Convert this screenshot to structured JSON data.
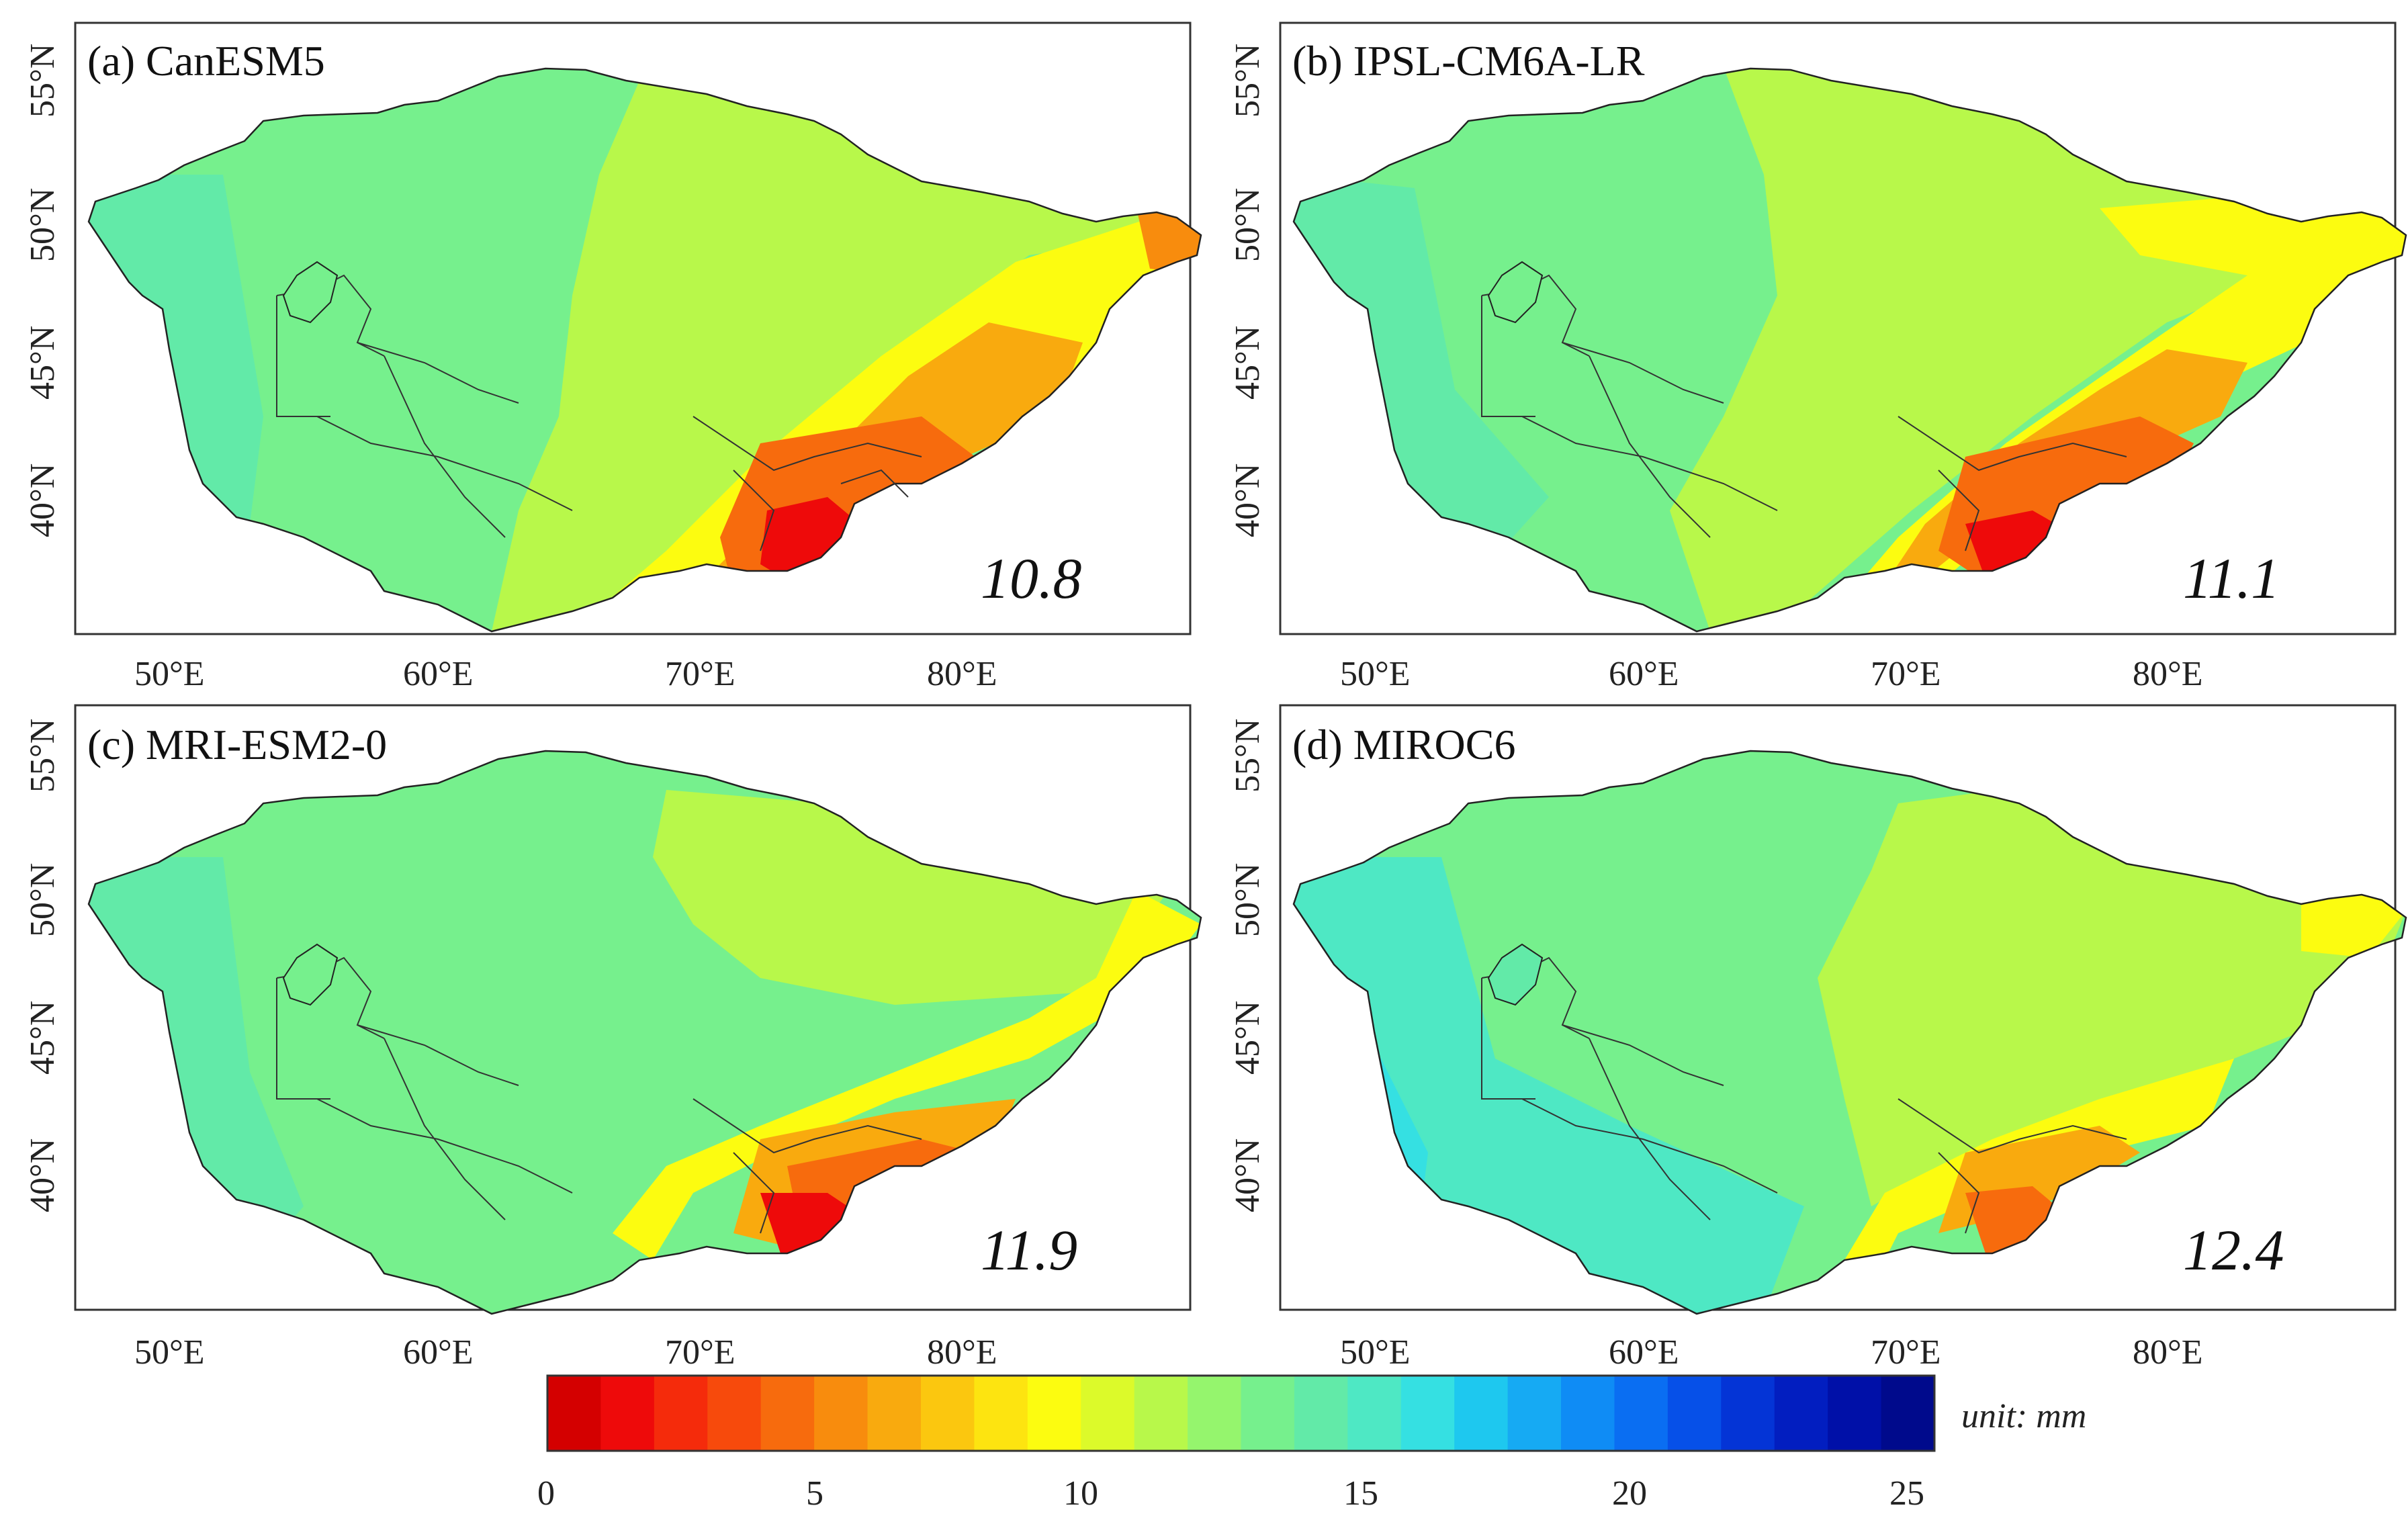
{
  "figure": {
    "lon_ticks": [
      "50°E",
      "60°E",
      "70°E",
      "80°E"
    ],
    "lat_ticks": [
      "40°N",
      "45°N",
      "50°N",
      "55°N"
    ],
    "panels": [
      {
        "label": "(a) CanESM5",
        "value": "10.8"
      },
      {
        "label": "(b) IPSL-CM6A-LR",
        "value": "11.1"
      },
      {
        "label": "(c) MRI-ESM2-0",
        "value": "11.9"
      },
      {
        "label": "(d) MIROC6",
        "value": "12.4"
      }
    ],
    "colorbar": {
      "min": 0,
      "max": 25,
      "ticks": [
        "0",
        "5",
        "10",
        "15",
        "20",
        "25"
      ],
      "unit": "unit: mm",
      "colors": [
        "#d40000",
        "#ee0a0a",
        "#f52b0b",
        "#f74a0c",
        "#f76b0d",
        "#f88c0d",
        "#f9aa0e",
        "#fbc70f",
        "#fde410",
        "#fcfc10",
        "#dcfa2a",
        "#b8f84a",
        "#95f56d",
        "#76f08d",
        "#62eaa8",
        "#4ee8c4",
        "#35e0e2",
        "#1ec8ef",
        "#16aaf3",
        "#0f8cf5",
        "#0a6ef2",
        "#0650e8",
        "#0434d6",
        "#021ec0",
        "#0010a8",
        "#000a8c"
      ]
    },
    "colors": {
      "dark_red": "#d40000",
      "orange": "#f88c0d",
      "light_orange": "#f9aa0e",
      "yellow": "#fcfc10",
      "yellow_green": "#b8f84a",
      "light_green": "#95f56d",
      "green_cyan": "#76f08d",
      "cyan": "#4ee8c4",
      "light_blue": "#35e0e2",
      "blue": "#16aaf3"
    }
  }
}
